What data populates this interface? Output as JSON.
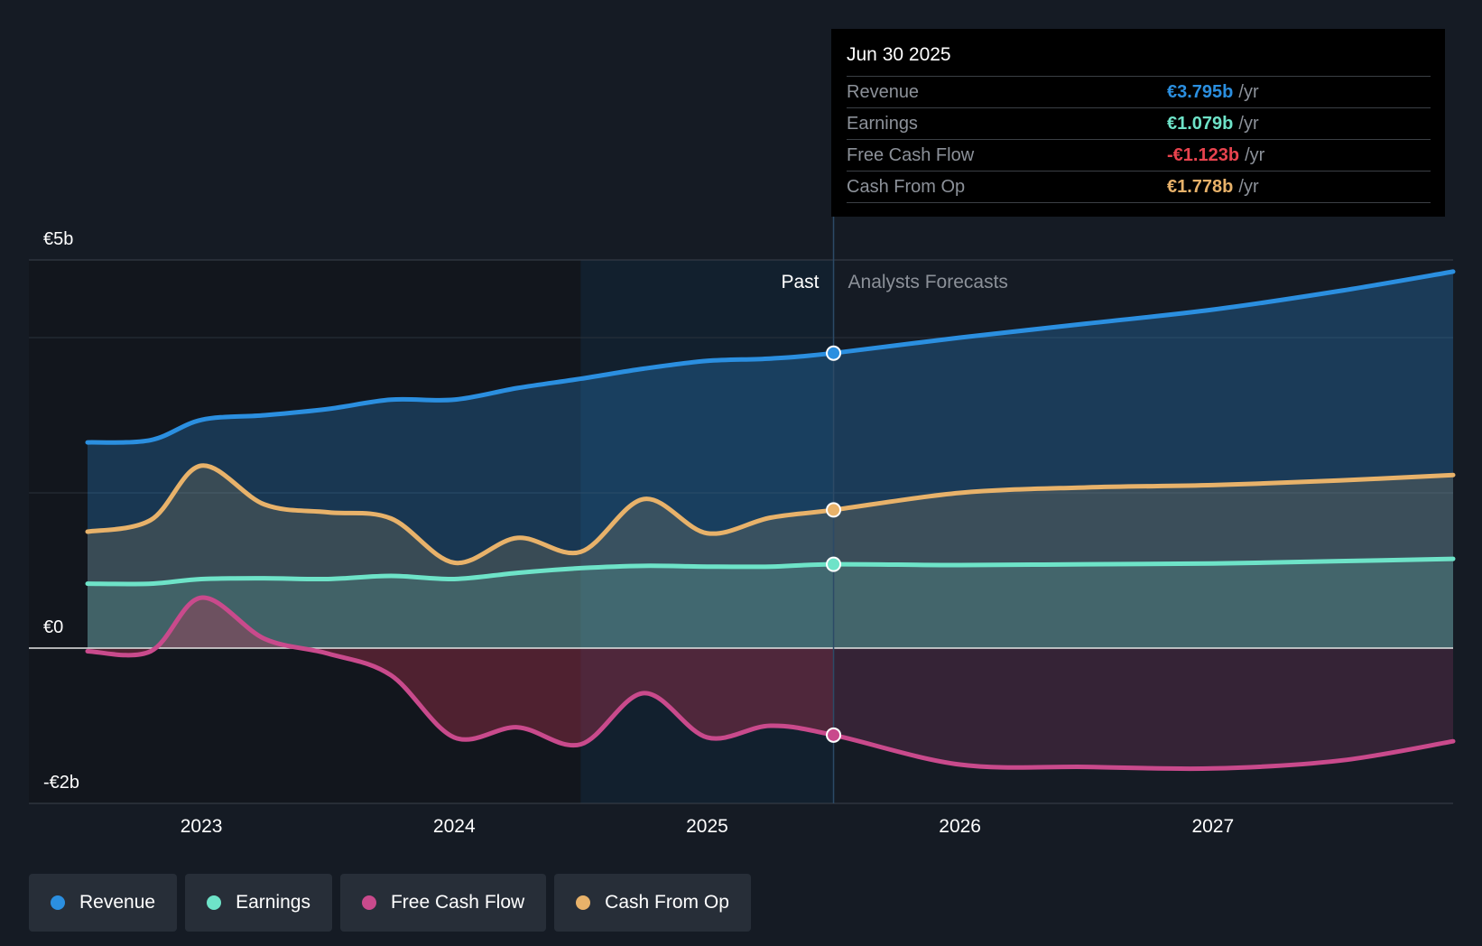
{
  "tooltip": {
    "date": "Jun 30 2025",
    "rows": [
      {
        "label": "Revenue",
        "value": "€3.795b",
        "unit": "/yr",
        "color": "#2b8fe0"
      },
      {
        "label": "Earnings",
        "value": "€1.079b",
        "unit": "/yr",
        "color": "#6ee3c8"
      },
      {
        "label": "Free Cash Flow",
        "value": "-€1.123b",
        "unit": "/yr",
        "color": "#e8434e"
      },
      {
        "label": "Cash From Op",
        "value": "€1.778b",
        "unit": "/yr",
        "color": "#e8b26a"
      }
    ]
  },
  "legend": [
    {
      "label": "Revenue",
      "color": "#2b8fe0"
    },
    {
      "label": "Earnings",
      "color": "#6ee3c8"
    },
    {
      "label": "Free Cash Flow",
      "color": "#c94a8c"
    },
    {
      "label": "Cash From Op",
      "color": "#e8b26a"
    }
  ],
  "chart_data": {
    "type": "area",
    "title": "",
    "xlabel": "",
    "ylabel": "",
    "y_tick_labels": [
      "€5b",
      "€0",
      "-€2b"
    ],
    "y_ticks": [
      5,
      0,
      -2
    ],
    "ylim": [
      -2,
      5
    ],
    "xlim": [
      2022.55,
      2027.95
    ],
    "x_ticks": [
      2023,
      2024,
      2025,
      2026,
      2027
    ],
    "x_tick_labels": [
      "2023",
      "2024",
      "2025",
      "2026",
      "2027"
    ],
    "gridlines": [
      4,
      2
    ],
    "past_label": "Past",
    "forecast_label": "Analysts Forecasts",
    "past_end": 2025.5,
    "highlight_start": 2024.5,
    "series": [
      {
        "name": "Revenue",
        "color": "#2b8fe0",
        "x": [
          2022.55,
          2022.8,
          2023.0,
          2023.25,
          2023.5,
          2023.75,
          2024.0,
          2024.25,
          2024.5,
          2024.75,
          2025.0,
          2025.25,
          2025.5,
          2026.0,
          2026.5,
          2027.0,
          2027.5,
          2027.95
        ],
        "y": [
          2.65,
          2.68,
          2.94,
          3.0,
          3.08,
          3.2,
          3.2,
          3.35,
          3.47,
          3.6,
          3.7,
          3.73,
          3.8,
          4.0,
          4.18,
          4.36,
          4.6,
          4.85
        ]
      },
      {
        "name": "Cash From Op",
        "color": "#e8b26a",
        "x": [
          2022.55,
          2022.8,
          2023.0,
          2023.25,
          2023.5,
          2023.75,
          2024.0,
          2024.25,
          2024.5,
          2024.75,
          2025.0,
          2025.25,
          2025.5,
          2026.0,
          2026.5,
          2027.0,
          2027.5,
          2027.95
        ],
        "y": [
          1.5,
          1.65,
          2.35,
          1.85,
          1.75,
          1.67,
          1.1,
          1.42,
          1.24,
          1.92,
          1.48,
          1.68,
          1.78,
          2.0,
          2.07,
          2.1,
          2.16,
          2.23
        ],
        "fill": true
      },
      {
        "name": "Earnings",
        "color": "#6ee3c8",
        "x": [
          2022.55,
          2022.8,
          2023.0,
          2023.25,
          2023.5,
          2023.75,
          2024.0,
          2024.25,
          2024.5,
          2024.75,
          2025.0,
          2025.25,
          2025.5,
          2026.0,
          2026.5,
          2027.0,
          2027.5,
          2027.95
        ],
        "y": [
          0.83,
          0.83,
          0.89,
          0.9,
          0.89,
          0.93,
          0.89,
          0.97,
          1.03,
          1.06,
          1.05,
          1.05,
          1.08,
          1.07,
          1.08,
          1.09,
          1.12,
          1.15
        ],
        "fill": true
      },
      {
        "name": "Free Cash Flow",
        "color": "#c94a8c",
        "x": [
          2022.55,
          2022.8,
          2023.0,
          2023.25,
          2023.5,
          2023.75,
          2024.0,
          2024.25,
          2024.5,
          2024.75,
          2025.0,
          2025.25,
          2025.5,
          2026.0,
          2026.5,
          2027.0,
          2027.5,
          2027.95
        ],
        "y": [
          -0.04,
          -0.04,
          0.65,
          0.12,
          -0.07,
          -0.35,
          -1.15,
          -1.02,
          -1.24,
          -0.58,
          -1.15,
          -1.0,
          -1.12,
          -1.5,
          -1.53,
          -1.55,
          -1.45,
          -1.2
        ],
        "fill": true
      }
    ],
    "markers_at": 2025.5
  }
}
